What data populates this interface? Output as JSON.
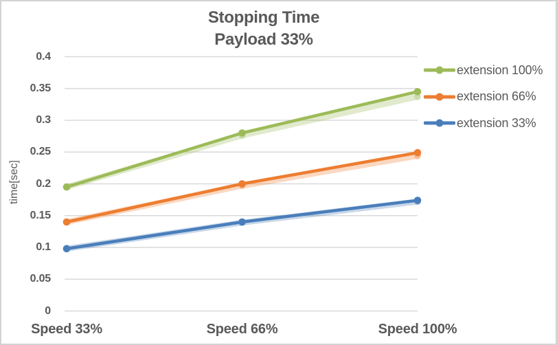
{
  "chart_data": {
    "type": "line",
    "title": "Stopping Time",
    "subtitle": "Payload 33%",
    "ylabel": "time[sec]",
    "xlabel": "",
    "categories": [
      "Speed 33%",
      "Speed 66%",
      "Speed 100%"
    ],
    "series": [
      {
        "name": "extension 100%",
        "color": "#9CBB58",
        "values": [
          0.195,
          0.28,
          0.345
        ],
        "band_values": [
          0.195,
          0.276,
          0.337
        ]
      },
      {
        "name": "extension 66%",
        "color": "#ED7D31",
        "values": [
          0.14,
          0.2,
          0.249
        ],
        "band_values": [
          0.14,
          0.197,
          0.244
        ]
      },
      {
        "name": "extension 33%",
        "color": "#4A7EBB",
        "values": [
          0.098,
          0.14,
          0.174
        ],
        "band_values": [
          0.098,
          0.139,
          0.172
        ]
      }
    ],
    "ylim": [
      0,
      0.4
    ],
    "ytick_step": 0.05,
    "ytick_labels": [
      "0",
      "0.05",
      "0.1",
      "0.15",
      "0.2",
      "0.25",
      "0.3",
      "0.35",
      "0.4"
    ],
    "grid": true,
    "legend_position": "right",
    "styles": {
      "text_color": "#595959",
      "gridline_color": "#D9D9D9",
      "border_color": "#D3D3D3",
      "background": "#FFFFFF"
    }
  }
}
